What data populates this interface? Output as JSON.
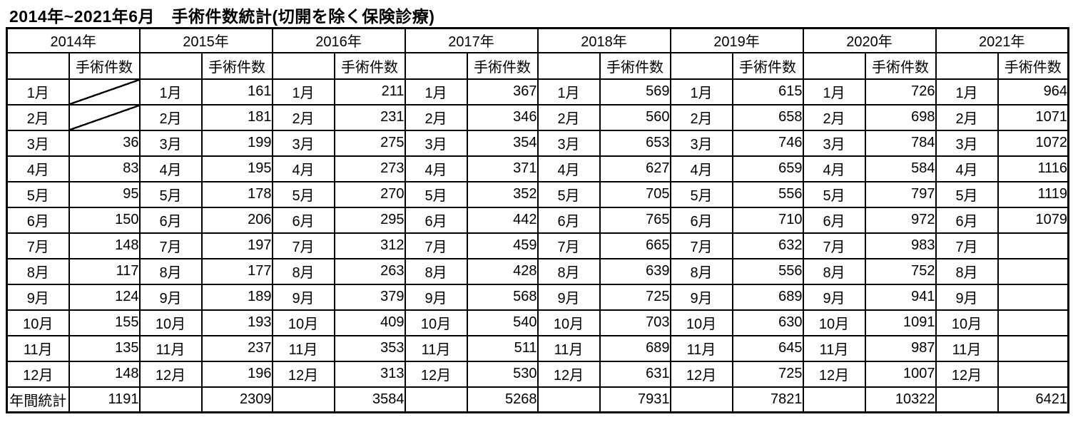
{
  "page": {
    "title": "2014年~2021年6月　手術件数統計(切開を除く保険診療)"
  },
  "table": {
    "count_header": "手術件数",
    "annual_total_label": "年間統計",
    "month_labels": [
      "1月",
      "2月",
      "3月",
      "4月",
      "5月",
      "6月",
      "7月",
      "8月",
      "9月",
      "10月",
      "11月",
      "12月"
    ],
    "years": [
      {
        "label": "2014年",
        "counts": [
          "",
          "",
          "36",
          "83",
          "95",
          "150",
          "148",
          "117",
          "124",
          "155",
          "135",
          "148"
        ],
        "no_data_months": [
          0,
          1
        ],
        "total": "1191"
      },
      {
        "label": "2015年",
        "counts": [
          "161",
          "181",
          "199",
          "195",
          "178",
          "206",
          "197",
          "177",
          "189",
          "193",
          "237",
          "196"
        ],
        "no_data_months": [],
        "total": "2309"
      },
      {
        "label": "2016年",
        "counts": [
          "211",
          "231",
          "275",
          "273",
          "270",
          "295",
          "312",
          "263",
          "379",
          "409",
          "353",
          "313"
        ],
        "no_data_months": [],
        "total": "3584"
      },
      {
        "label": "2017年",
        "counts": [
          "367",
          "346",
          "354",
          "371",
          "352",
          "442",
          "459",
          "428",
          "568",
          "540",
          "511",
          "530"
        ],
        "no_data_months": [],
        "total": "5268"
      },
      {
        "label": "2018年",
        "counts": [
          "569",
          "560",
          "653",
          "627",
          "705",
          "765",
          "665",
          "639",
          "725",
          "703",
          "689",
          "631"
        ],
        "no_data_months": [],
        "total": "7931"
      },
      {
        "label": "2019年",
        "counts": [
          "615",
          "658",
          "746",
          "659",
          "556",
          "710",
          "632",
          "556",
          "689",
          "630",
          "645",
          "725"
        ],
        "no_data_months": [],
        "total": "7821"
      },
      {
        "label": "2020年",
        "counts": [
          "726",
          "698",
          "784",
          "584",
          "797",
          "972",
          "983",
          "752",
          "941",
          "1091",
          "987",
          "1007"
        ],
        "no_data_months": [],
        "total": "10322"
      },
      {
        "label": "2021年",
        "counts": [
          "964",
          "1071",
          "1072",
          "1116",
          "1119",
          "1079",
          "",
          "",
          "",
          "",
          "",
          ""
        ],
        "no_data_months": [],
        "total": "6421"
      }
    ]
  }
}
